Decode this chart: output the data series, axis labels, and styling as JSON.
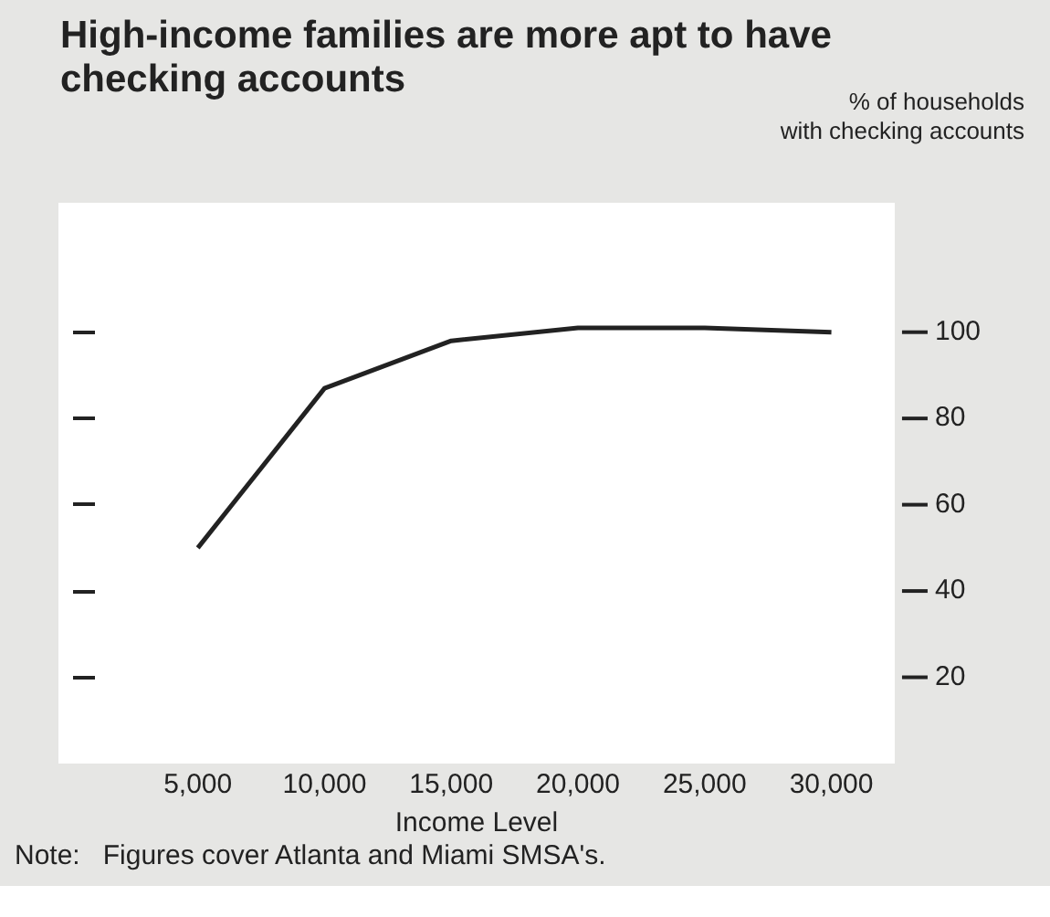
{
  "chart_data": {
    "type": "line",
    "title": "High-income families are more apt to have checking accounts",
    "ylabel": "% of households\nwith checking accounts",
    "xlabel": "Income Level",
    "x": [
      5000,
      10000,
      15000,
      20000,
      25000,
      30000
    ],
    "series": [
      {
        "color": "#222222",
        "values": [
          50,
          87,
          98,
          101,
          101,
          100
        ]
      }
    ],
    "xlim": [
      -500,
      32500
    ],
    "xticks": [
      {
        "value": 5000,
        "label": "5,000"
      },
      {
        "value": 10000,
        "label": "10,000"
      },
      {
        "value": 15000,
        "label": "15,000"
      },
      {
        "value": 20000,
        "label": "20,000"
      },
      {
        "value": 25000,
        "label": "25,000"
      },
      {
        "value": 30000,
        "label": "30,000"
      }
    ],
    "ylim": [
      0,
      130
    ],
    "yticks": [
      20,
      40,
      60,
      80,
      100
    ],
    "grid": false,
    "legend": false,
    "marker": "none",
    "line_style": "solid",
    "annotations": [
      "Note:   Figures cover Atlanta and Miami SMSA's."
    ]
  }
}
